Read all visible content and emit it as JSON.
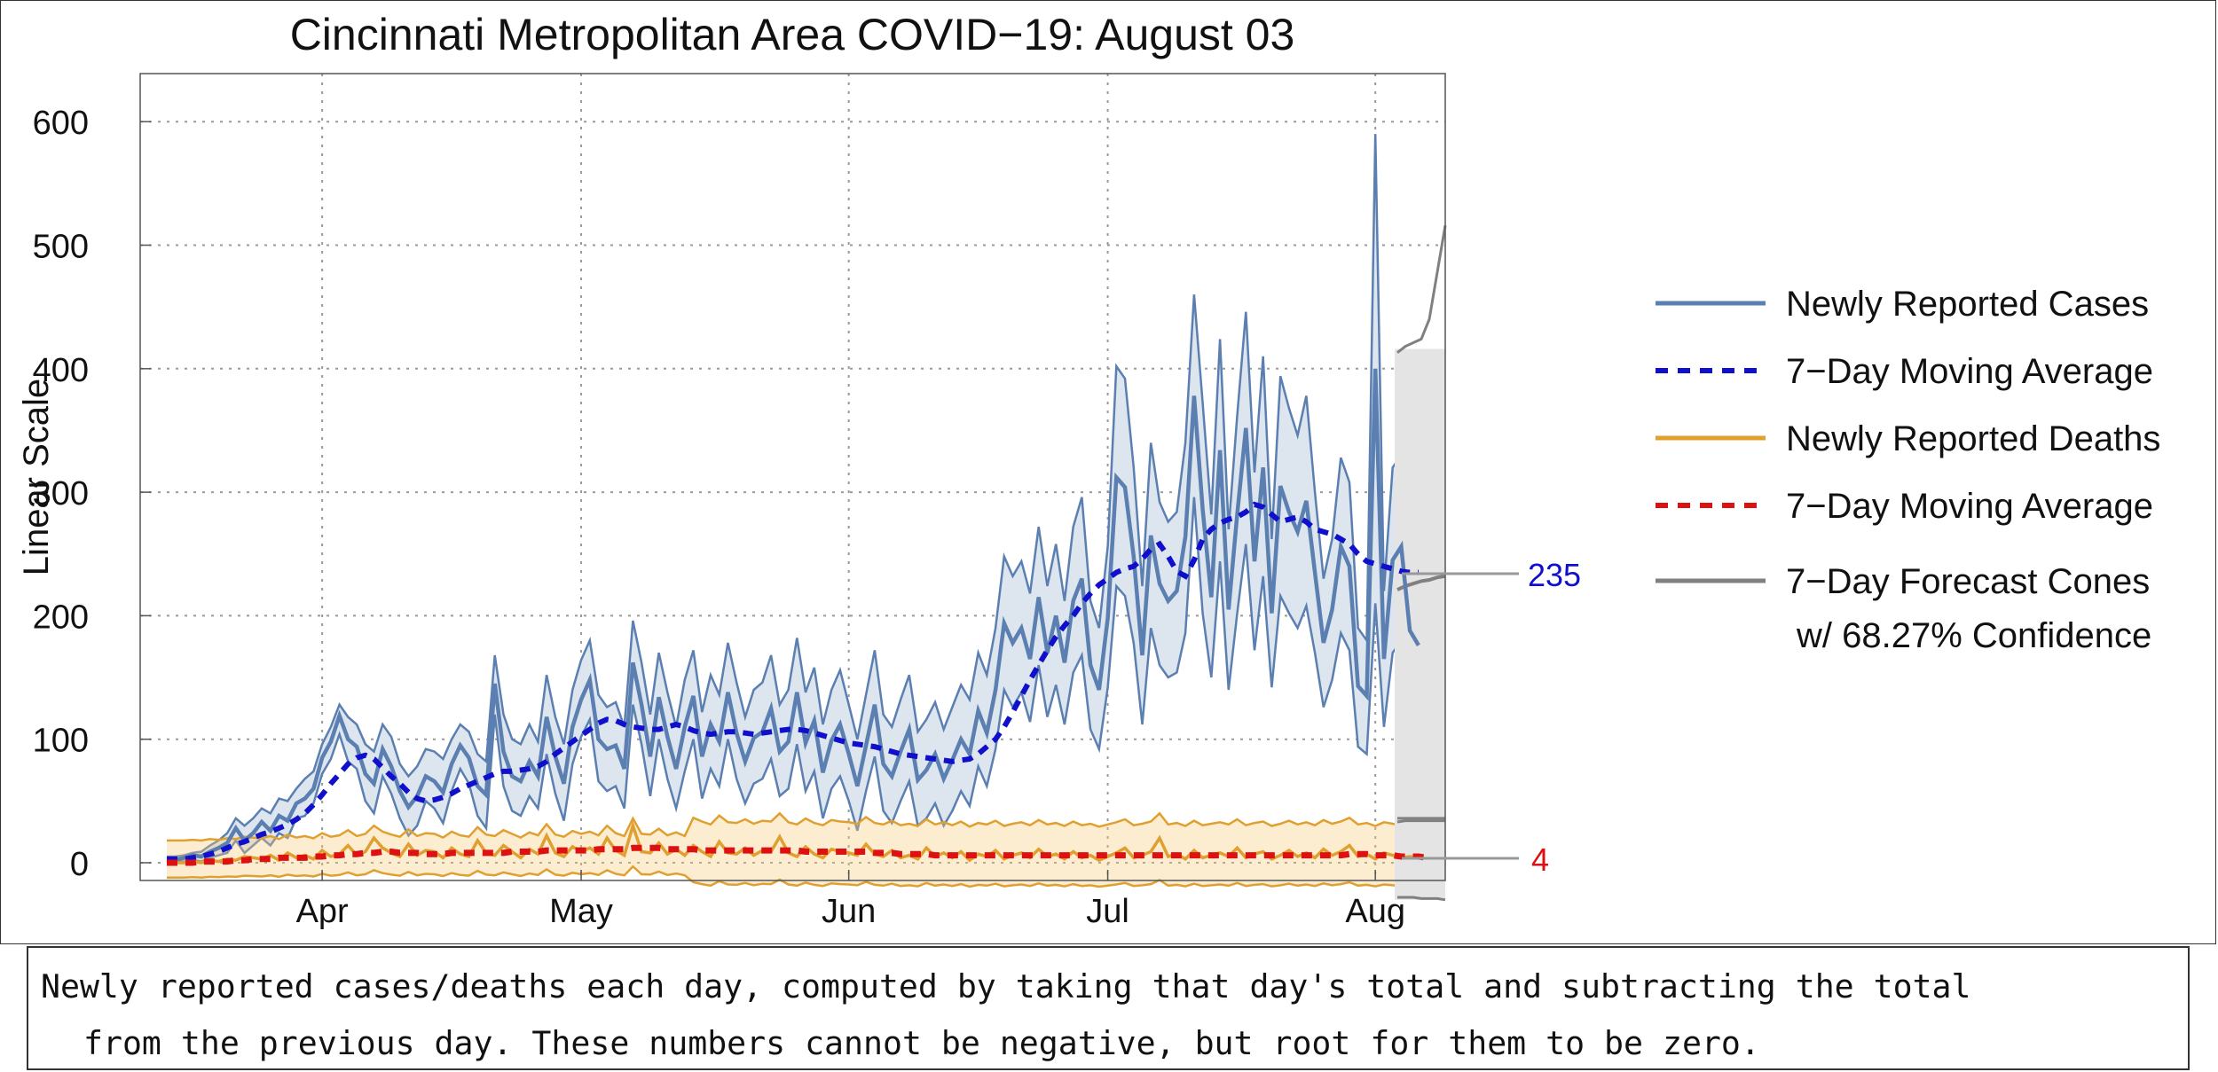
{
  "chart_data": {
    "type": "line",
    "title": "Cincinnati Metropolitan Area COVID−19: August 03",
    "ylabel": "Linear Scale",
    "xlabel": "",
    "ylim": [
      -14,
      640
    ],
    "yticks": [
      0,
      100,
      200,
      300,
      400,
      500,
      600
    ],
    "xlim_day": [
      0,
      155
    ],
    "xticks": [
      {
        "day": 18,
        "label": "Apr"
      },
      {
        "day": 48,
        "label": "May"
      },
      {
        "day": 79,
        "label": "Jun"
      },
      {
        "day": 109,
        "label": "Jul"
      },
      {
        "day": 140,
        "label": "Aug"
      }
    ],
    "grid": true,
    "series": [
      {
        "name": "Newly Reported Cases",
        "style": "solid",
        "color": "#5B7FB0",
        "values": [
          3,
          2,
          4,
          6,
          5,
          9,
          12,
          16,
          28,
          18,
          24,
          33,
          26,
          38,
          34,
          48,
          52,
          60,
          85,
          98,
          119,
          100,
          94,
          72,
          64,
          92,
          78,
          58,
          45,
          54,
          70,
          66,
          57,
          80,
          95,
          85,
          62,
          55,
          145,
          90,
          70,
          66,
          82,
          70,
          118,
          86,
          64,
          110,
          132,
          148,
          100,
          92,
          95,
          76,
          162,
          128,
          86,
          134,
          102,
          76,
          110,
          135,
          86,
          112,
          98,
          138,
          105,
          82,
          101,
          106,
          125,
          90,
          98,
          138,
          97,
          115,
          73,
          99,
          112,
          88,
          62,
          95,
          128,
          80,
          70,
          90,
          108,
          67,
          75,
          88,
          68,
          83,
          100,
          88,
          123,
          105,
          140,
          194,
          178,
          190,
          165,
          215,
          170,
          200,
          162,
          212,
          230,
          160,
          140,
          198,
          312,
          304,
          248,
          168,
          265,
          226,
          212,
          220,
          264,
          378,
          286,
          215,
          334,
          205,
          282,
          352,
          244,
          320,
          202,
          305,
          284,
          268,
          293,
          235,
          178,
          205,
          256,
          240,
          143,
          135,
          400,
          165,
          245,
          256,
          188,
          176
        ]
      },
      {
        "name": "7−Day Moving Average",
        "style": "dashed",
        "color": "#1010CC",
        "values": [
          3,
          3,
          3,
          4,
          5,
          7,
          9,
          12,
          15,
          17,
          20,
          23,
          25,
          28,
          31,
          35,
          40,
          47,
          55,
          64,
          72,
          80,
          85,
          87,
          84,
          77,
          70,
          64,
          57,
          52,
          50,
          51,
          53,
          56,
          60,
          63,
          66,
          69,
          72,
          74,
          74,
          75,
          76,
          78,
          82,
          88,
          93,
          98,
          103,
          108,
          113,
          116,
          115,
          112,
          110,
          109,
          108,
          108,
          110,
          112,
          110,
          107,
          105,
          104,
          105,
          106,
          106,
          105,
          104,
          105,
          106,
          107,
          108,
          108,
          107,
          105,
          103,
          101,
          99,
          97,
          96,
          95,
          94,
          92,
          90,
          88,
          87,
          86,
          85,
          84,
          83,
          82,
          83,
          84,
          88,
          94,
          100,
          110,
          122,
          135,
          148,
          160,
          172,
          183,
          192,
          200,
          210,
          218,
          225,
          230,
          235,
          238,
          240,
          246,
          254,
          258,
          248,
          236,
          232,
          245,
          262,
          270,
          275,
          278,
          280,
          284,
          290,
          288,
          282,
          276,
          278,
          280,
          276,
          270,
          268,
          266,
          262,
          258,
          250,
          244,
          242,
          240,
          238,
          236,
          235,
          235
        ]
      },
      {
        "name": "Newly Reported Deaths",
        "style": "solid",
        "color": "#E0A030",
        "values": [
          0,
          0,
          0,
          1,
          0,
          2,
          1,
          3,
          2,
          5,
          4,
          3,
          6,
          2,
          8,
          4,
          6,
          3,
          10,
          5,
          7,
          14,
          6,
          9,
          20,
          12,
          8,
          5,
          15,
          6,
          10,
          9,
          4,
          12,
          7,
          5,
          18,
          8,
          6,
          14,
          9,
          4,
          11,
          7,
          22,
          8,
          5,
          13,
          9,
          12,
          7,
          20,
          10,
          6,
          30,
          9,
          8,
          16,
          7,
          11,
          6,
          14,
          9,
          5,
          17,
          8,
          7,
          12,
          6,
          10,
          9,
          21,
          8,
          5,
          13,
          7,
          4,
          11,
          9,
          8,
          6,
          15,
          7,
          5,
          10,
          4,
          6,
          3,
          12,
          5,
          8,
          4,
          9,
          2,
          7,
          5,
          10,
          3,
          6,
          8,
          4,
          11,
          5,
          7,
          3,
          9,
          4,
          6,
          2,
          5,
          8,
          12,
          4,
          6,
          9,
          20,
          5,
          7,
          3,
          10,
          4,
          6,
          8,
          5,
          12,
          4,
          7,
          9,
          3,
          6,
          10,
          5,
          8,
          4,
          11,
          6,
          9,
          14,
          5,
          7,
          3,
          8,
          6,
          4,
          5,
          4
        ]
      },
      {
        "name": "7−Day Moving Average",
        "style": "dashed",
        "color": "#DD1111",
        "values": [
          0,
          0,
          0,
          0,
          1,
          1,
          1,
          1,
          2,
          2,
          3,
          3,
          3,
          4,
          4,
          4,
          4,
          5,
          5,
          6,
          6,
          7,
          7,
          8,
          8,
          9,
          9,
          8,
          8,
          8,
          7,
          7,
          7,
          8,
          8,
          8,
          8,
          8,
          8,
          8,
          9,
          9,
          9,
          9,
          10,
          10,
          10,
          10,
          10,
          10,
          11,
          11,
          11,
          11,
          12,
          12,
          12,
          12,
          11,
          11,
          11,
          11,
          10,
          10,
          10,
          10,
          10,
          10,
          10,
          10,
          10,
          10,
          10,
          10,
          9,
          9,
          9,
          9,
          9,
          9,
          9,
          9,
          8,
          8,
          8,
          7,
          7,
          7,
          7,
          6,
          6,
          6,
          6,
          6,
          6,
          6,
          6,
          6,
          6,
          6,
          6,
          6,
          6,
          6,
          6,
          6,
          6,
          6,
          6,
          6,
          6,
          6,
          6,
          6,
          6,
          6,
          6,
          6,
          6,
          6,
          6,
          6,
          6,
          6,
          6,
          6,
          6,
          6,
          6,
          6,
          6,
          6,
          6,
          6,
          6,
          6,
          6,
          7,
          7,
          7,
          6,
          6,
          6,
          5,
          5,
          5,
          4
        ]
      },
      {
        "name": "7−Day Forecast Cones",
        "style": "solid",
        "color": "#808080",
        "note": "w/ 68.27% Confidence",
        "cases_forecast": {
          "center": [
            221,
            224,
            226,
            228,
            229,
            231,
            232
          ],
          "upper": [
            413,
            418,
            421,
            424,
            440,
            478,
            516
          ],
          "lower": [
            33,
            34,
            34,
            34,
            34,
            34,
            34
          ]
        },
        "deaths_forecast": {
          "upper": [
            36,
            36,
            36,
            36,
            36,
            36,
            36
          ],
          "lower": [
            -28,
            -28,
            -28,
            -29,
            -29,
            -29,
            -30
          ]
        }
      }
    ],
    "cases_band": {
      "upper": [
        5,
        5,
        6,
        8,
        9,
        14,
        18,
        24,
        36,
        30,
        36,
        44,
        40,
        52,
        50,
        60,
        68,
        74,
        96,
        110,
        128,
        118,
        112,
        96,
        90,
        112,
        102,
        80,
        70,
        78,
        92,
        90,
        84,
        100,
        112,
        106,
        88,
        82,
        168,
        120,
        100,
        96,
        112,
        98,
        152,
        118,
        96,
        140,
        164,
        180,
        136,
        126,
        130,
        110,
        196,
        162,
        120,
        170,
        138,
        110,
        148,
        172,
        122,
        152,
        136,
        178,
        146,
        118,
        140,
        146,
        168,
        128,
        140,
        182,
        138,
        158,
        112,
        140,
        156,
        128,
        100,
        136,
        172,
        120,
        110,
        132,
        152,
        106,
        116,
        130,
        108,
        126,
        144,
        132,
        170,
        152,
        190,
        248,
        232,
        244,
        218,
        272,
        224,
        258,
        212,
        272,
        296,
        212,
        190,
        256,
        402,
        392,
        320,
        224,
        340,
        292,
        276,
        284,
        340,
        460,
        372,
        282,
        424,
        270,
        362,
        446,
        316,
        410,
        262,
        394,
        368,
        346,
        378,
        300,
        230,
        262,
        328,
        308,
        190,
        180,
        590,
        220,
        320,
        330,
        244,
        228
      ],
      "lower": [
        1,
        0,
        1,
        2,
        1,
        4,
        6,
        8,
        18,
        8,
        14,
        20,
        14,
        24,
        20,
        36,
        38,
        48,
        72,
        84,
        104,
        82,
        76,
        50,
        40,
        70,
        56,
        36,
        22,
        30,
        50,
        44,
        32,
        58,
        76,
        64,
        38,
        28,
        120,
        62,
        42,
        38,
        54,
        44,
        88,
        56,
        34,
        80,
        102,
        116,
        66,
        58,
        62,
        44,
        128,
        96,
        54,
        100,
        68,
        44,
        74,
        100,
        52,
        76,
        62,
        100,
        68,
        48,
        64,
        68,
        84,
        54,
        60,
        96,
        58,
        74,
        36,
        60,
        70,
        50,
        26,
        58,
        86,
        42,
        32,
        50,
        66,
        30,
        36,
        48,
        30,
        42,
        58,
        46,
        78,
        62,
        92,
        140,
        126,
        138,
        114,
        160,
        118,
        144,
        112,
        154,
        168,
        108,
        92,
        142,
        224,
        216,
        178,
        112,
        190,
        160,
        150,
        154,
        186,
        296,
        202,
        150,
        244,
        140,
        202,
        258,
        172,
        232,
        142,
        216,
        202,
        190,
        208,
        170,
        126,
        148,
        186,
        172,
        94,
        88,
        210,
        110,
        170,
        180,
        132,
        124
      ]
    }
  },
  "legend": {
    "items": [
      {
        "label": "Newly Reported Cases"
      },
      {
        "label": "7−Day Moving Average"
      },
      {
        "label": "Newly Reported Deaths"
      },
      {
        "label": "7−Day Moving Average"
      },
      {
        "label": "7−Day Forecast Cones"
      }
    ],
    "forecast_note": "w/ 68.27% Confidence"
  },
  "annotations": {
    "cases_latest": "235",
    "deaths_latest": "4",
    "cases_color": "#1010CC",
    "deaths_color": "#DD1111"
  },
  "caption": {
    "line1": "Newly reported cases/deaths each day, computed by taking that day's total and subtracting the total",
    "line2": "from the previous day. These numbers cannot be negative, but root for them to be zero."
  }
}
